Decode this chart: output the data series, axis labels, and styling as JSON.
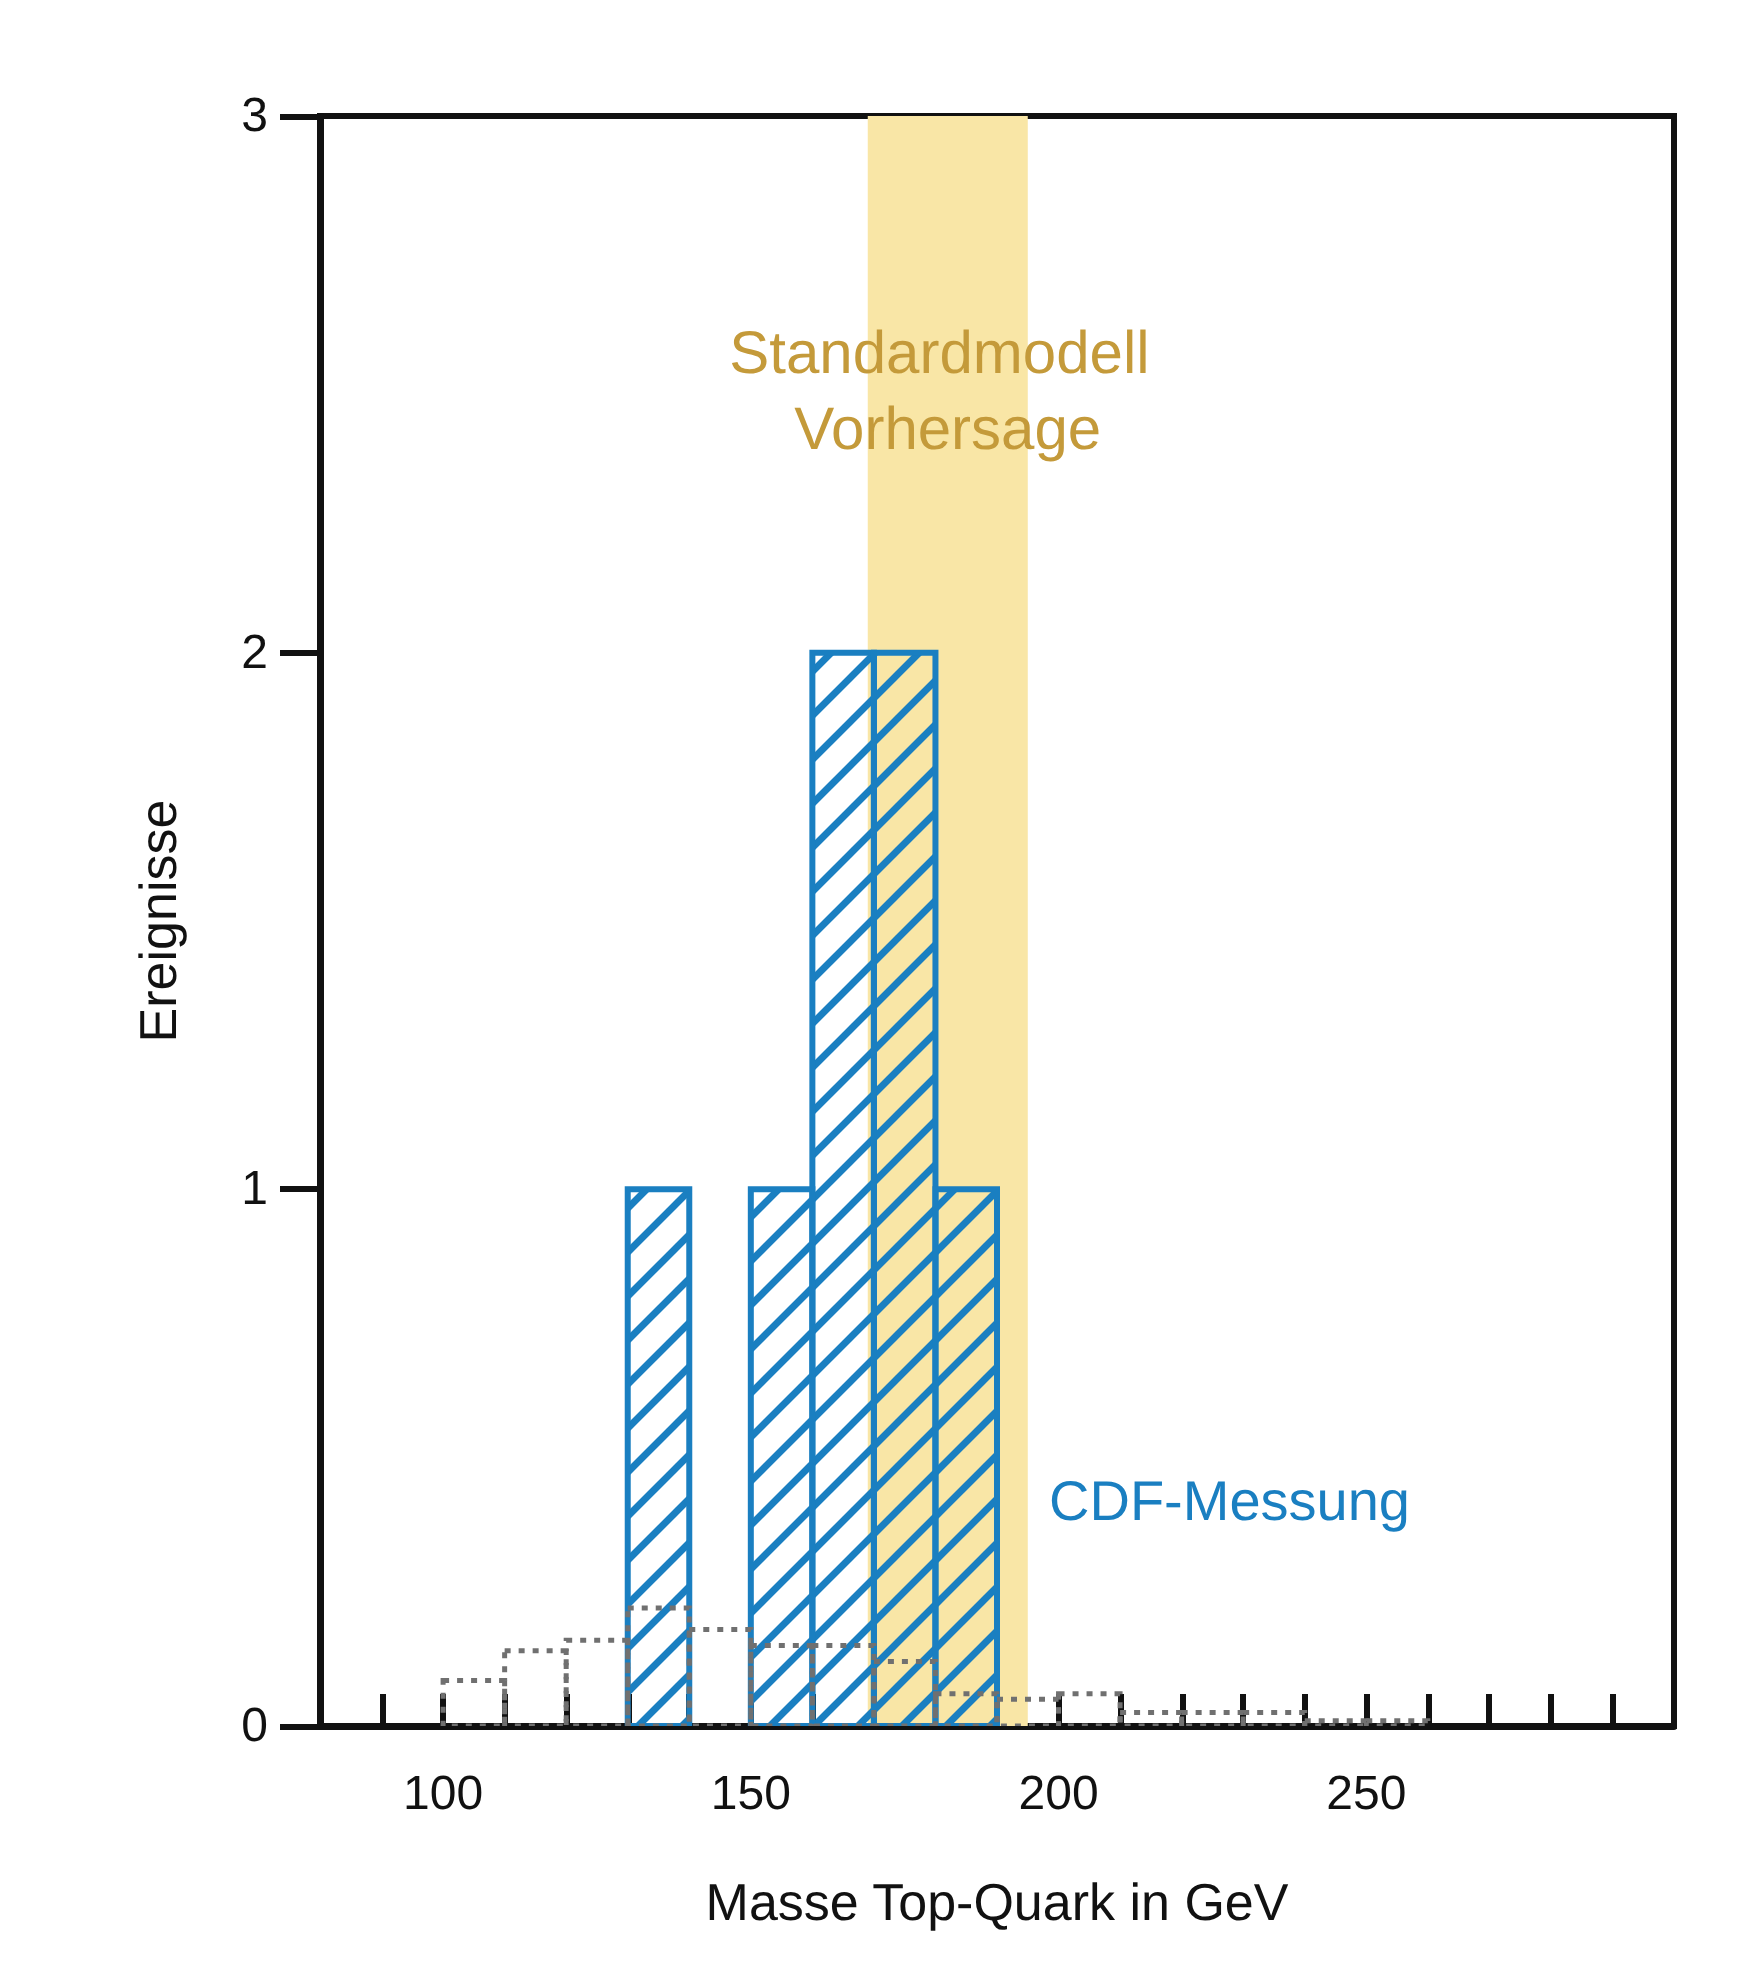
{
  "chart_data": {
    "type": "histogram",
    "xlabel": "Masse Top-Quark in GeV",
    "ylabel": "Ereignisse",
    "xlim": [
      80,
      300
    ],
    "xticks": [
      {
        "value": 90,
        "label": null
      },
      100,
      {
        "value": 110,
        "label": null
      },
      {
        "value": 120,
        "label": null
      },
      {
        "value": 130,
        "label": null
      },
      {
        "value": 140,
        "label": null
      },
      150,
      {
        "value": 160,
        "label": null
      },
      {
        "value": 170,
        "label": null
      },
      {
        "value": 180,
        "label": null
      },
      {
        "value": 190,
        "label": null
      },
      200,
      {
        "value": 210,
        "label": null
      },
      {
        "value": 220,
        "label": null
      },
      {
        "value": 230,
        "label": null
      },
      {
        "value": 240,
        "label": null
      },
      250,
      {
        "value": 260,
        "label": null
      },
      {
        "value": 270,
        "label": null
      },
      {
        "value": 280,
        "label": null
      },
      {
        "value": 290,
        "label": null
      }
    ],
    "ylim": [
      0,
      3
    ],
    "yticks": [
      0,
      1,
      2,
      3
    ],
    "grid": false,
    "legend": false,
    "series": [
      {
        "name": "CDF-Messung",
        "color": "#1a7fc1",
        "values": [
          null,
          null,
          null,
          1,
          null,
          1,
          2,
          2,
          1,
          null,
          null,
          null,
          null,
          null,
          null,
          null
        ]
      },
      {
        "color": "#707070",
        "line_style": "dotted",
        "values": [
          0.085,
          0.14,
          0.16,
          0.22,
          0.18,
          0.15,
          0.15,
          0.12,
          0.06,
          0.05,
          0.06,
          0.025,
          0.025,
          0.025,
          0.01,
          0.01
        ]
      }
    ],
    "bins": [
      100,
      110,
      120,
      130,
      140,
      150,
      160,
      170,
      180,
      190,
      200,
      210,
      220,
      230,
      240,
      250,
      260
    ],
    "bands": [
      {
        "axis": "x",
        "from": 169,
        "to": 195,
        "label": "Standardmodell Vorhersage",
        "color": "#f9e6a6"
      }
    ]
  }
}
